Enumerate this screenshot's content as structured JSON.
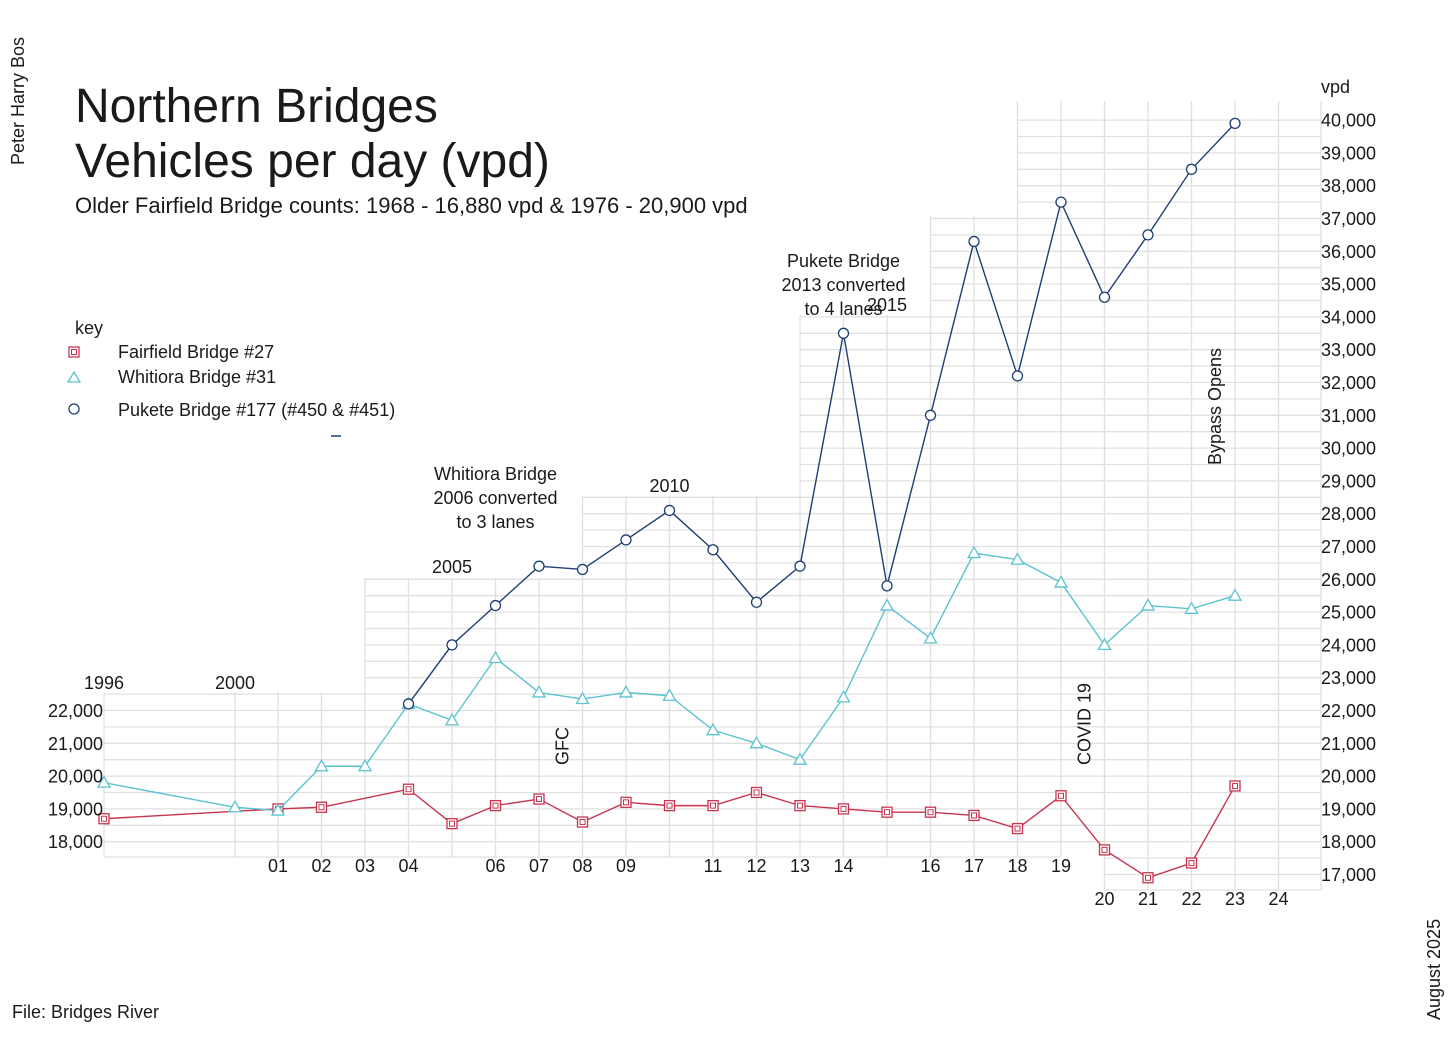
{
  "chart_data": {
    "type": "line",
    "title_line1": "Northern Bridges",
    "title_line2": "Vehicles per day (vpd)",
    "subtitle": "Older Fairfield Bridge counts: 1968 - 16,880 vpd & 1976 - 20,900 vpd",
    "author": "Peter Harry Bos",
    "date": "August 2025",
    "file": "File: Bridges River",
    "unit_label": "vpd",
    "legend_title": "key",
    "left_axis": {
      "ylim": [
        18000,
        22000
      ],
      "ticks": [
        "18,000",
        "19,000",
        "20,000",
        "21,000",
        "22,000"
      ],
      "tick_values": [
        18000,
        19000,
        20000,
        21000,
        22000
      ]
    },
    "right_axis": {
      "ylim": [
        17000,
        40000
      ],
      "ticks": [
        "17,000",
        "18,000",
        "19,000",
        "20,000",
        "21,000",
        "22,000",
        "23,000",
        "24,000",
        "25,000",
        "26,000",
        "27,000",
        "28,000",
        "29,000",
        "30,000",
        "31,000",
        "32,000",
        "33,000",
        "34,000",
        "35,000",
        "36,000",
        "37,000",
        "38,000",
        "39,000",
        "40,000"
      ],
      "tick_values": [
        17000,
        18000,
        19000,
        20000,
        21000,
        22000,
        23000,
        24000,
        25000,
        26000,
        27000,
        28000,
        29000,
        30000,
        31000,
        32000,
        33000,
        34000,
        35000,
        36000,
        37000,
        38000,
        39000,
        40000
      ]
    },
    "x_labels_lower": [
      {
        "year": 2001,
        "label": "01"
      },
      {
        "year": 2002,
        "label": "02"
      },
      {
        "year": 2003,
        "label": "03"
      },
      {
        "year": 2004,
        "label": "04"
      },
      {
        "year": 2006,
        "label": "06"
      },
      {
        "year": 2007,
        "label": "07"
      },
      {
        "year": 2008,
        "label": "08"
      },
      {
        "year": 2009,
        "label": "09"
      },
      {
        "year": 2011,
        "label": "11"
      },
      {
        "year": 2012,
        "label": "12"
      },
      {
        "year": 2013,
        "label": "13"
      },
      {
        "year": 2014,
        "label": "14"
      },
      {
        "year": 2016,
        "label": "16"
      },
      {
        "year": 2017,
        "label": "17"
      },
      {
        "year": 2018,
        "label": "18"
      },
      {
        "year": 2019,
        "label": "19"
      }
    ],
    "x_labels_lowest": [
      {
        "year": 2020,
        "label": "20"
      },
      {
        "year": 2021,
        "label": "21"
      },
      {
        "year": 2022,
        "label": "22"
      },
      {
        "year": 2023,
        "label": "23"
      },
      {
        "year": 2024,
        "label": "24"
      }
    ],
    "year_labels": [
      {
        "year": 1996,
        "label": "1996"
      },
      {
        "year": 2000,
        "label": "2000"
      },
      {
        "year": 2005,
        "label": "2005"
      },
      {
        "year": 2010,
        "label": "2010"
      },
      {
        "year": 2015,
        "label": "2015"
      }
    ],
    "annotations": [
      {
        "year": 2006,
        "lines": [
          "Whitiora Bridge",
          "2006 converted",
          "to 3 lanes"
        ]
      },
      {
        "year": 2014,
        "lines": [
          "Pukete Bridge",
          "2013 converted",
          "to 4 lanes"
        ]
      }
    ],
    "vertical_notes": [
      {
        "year": 2008,
        "text": "GFC"
      },
      {
        "year": 2020,
        "text": "COVID 19"
      },
      {
        "year": 2023,
        "text": "Bypass Opens"
      }
    ],
    "series": [
      {
        "name": "Fairfield Bridge #27",
        "color": "#c8344f",
        "marker": "square",
        "label": "Fairfield Bridge #27",
        "x": [
          1996,
          2001,
          2002,
          2004,
          2005,
          2006,
          2007,
          2008,
          2009,
          2010,
          2011,
          2012,
          2013,
          2014,
          2015,
          2016,
          2017,
          2018,
          2019,
          2020,
          2021,
          2022,
          2023
        ],
        "values": [
          18700,
          19000,
          19050,
          19600,
          18550,
          19100,
          19300,
          18600,
          19200,
          19100,
          19100,
          19500,
          19100,
          19000,
          18900,
          18900,
          18800,
          18400,
          19400,
          17750,
          16900,
          17350,
          19700
        ]
      },
      {
        "name": "Whitiora Bridge #31",
        "color": "#5bc3cf",
        "marker": "triangle",
        "label": "Whitiora Bridge #31",
        "x": [
          1996,
          2000,
          2001,
          2002,
          2003,
          2004,
          2005,
          2006,
          2007,
          2008,
          2009,
          2010,
          2011,
          2012,
          2013,
          2014,
          2015,
          2016,
          2017,
          2018,
          2019,
          2020,
          2021,
          2022,
          2023
        ],
        "values": [
          19800,
          19050,
          18950,
          20300,
          20300,
          22200,
          21700,
          23600,
          22550,
          22350,
          22550,
          22450,
          21400,
          21000,
          20500,
          22400,
          25200,
          24200,
          26800,
          26600,
          25900,
          24000,
          25200,
          25100,
          25500
        ]
      },
      {
        "name": "Pukete Bridge #177 (#450 & #451)",
        "color": "#1f3f73",
        "marker": "circle",
        "label": "Pukete Bridge #177 (#450 & #451)",
        "x": [
          2004,
          2005,
          2006,
          2007,
          2008,
          2009,
          2010,
          2011,
          2012,
          2013,
          2014,
          2015,
          2016,
          2017,
          2018,
          2019,
          2020,
          2021,
          2022,
          2023
        ],
        "values": [
          22200,
          24000,
          25200,
          26400,
          26300,
          27200,
          28100,
          26900,
          25300,
          26400,
          33500,
          25800,
          31000,
          36300,
          32200,
          37500,
          34600,
          36500,
          38500,
          39900
        ]
      }
    ]
  }
}
